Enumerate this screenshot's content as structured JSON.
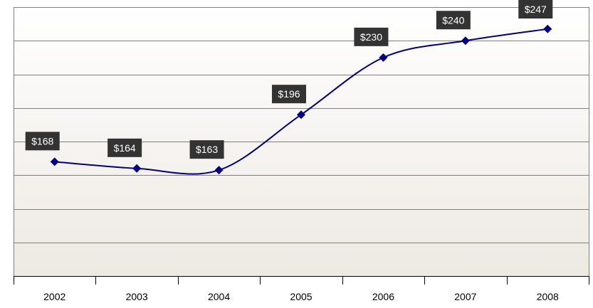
{
  "chart_data": {
    "type": "line",
    "categories": [
      "2002",
      "2003",
      "2004",
      "2005",
      "2006",
      "2007",
      "2008"
    ],
    "series": [
      {
        "values": [
          168,
          164,
          163,
          196,
          230,
          240,
          247
        ],
        "data_labels": [
          "$168",
          "$164",
          "$163",
          "$196",
          "$230",
          "$240",
          "$247"
        ]
      }
    ],
    "title": "",
    "xlabel": "",
    "ylabel": "",
    "ylim": [
      100,
      260
    ],
    "y_axis_tick_labels_shown": false,
    "grid": true,
    "legend": "none",
    "smooth": true,
    "marker": "diamond"
  },
  "colors": {
    "line": "#000080",
    "marker": "#000080",
    "label_box": "#333333",
    "label_text": "#ffffff",
    "grid": "#808080",
    "plot_bg_top": "#ffffff",
    "plot_bg_bottom": "#ede9e3"
  }
}
